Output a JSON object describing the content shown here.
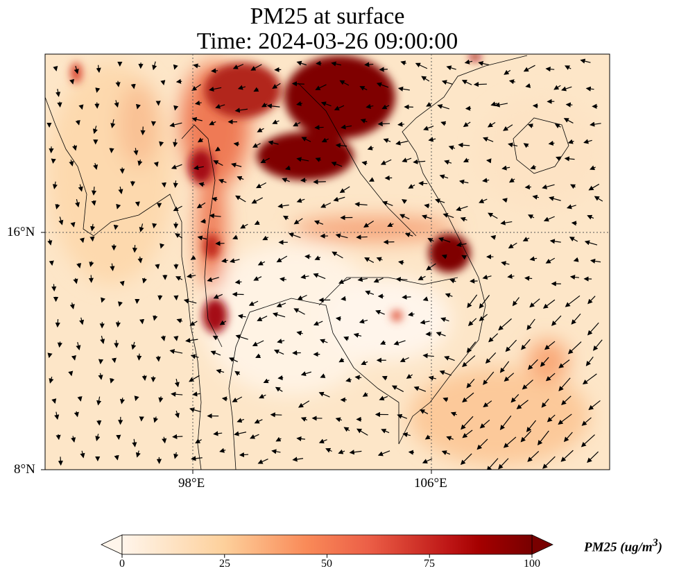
{
  "title": {
    "line1": "PM25 at surface",
    "line2": "Time: 2024-03-26 09:00:00"
  },
  "map": {
    "extent": {
      "lon": [
        93,
        112
      ],
      "lat": [
        8,
        22
      ]
    },
    "xticks": [
      {
        "value": 98,
        "label": "98°E"
      },
      {
        "value": 106,
        "label": "106°E"
      }
    ],
    "yticks": [
      {
        "value": 16,
        "label": "16°N"
      },
      {
        "value": 8,
        "label": "8°N"
      }
    ],
    "variable": "PM25",
    "overlay": "wind vectors"
  },
  "colorbar": {
    "label": "PM25 (ug/m",
    "label_sup": "3",
    "label_close": ")",
    "min": 0,
    "max": 100,
    "extend": "both",
    "ticks": [
      "0",
      "25",
      "50",
      "75",
      "100"
    ],
    "colormap": [
      "#fff5eb",
      "#fdd49e",
      "#fdae6b",
      "#f16913",
      "#d94801",
      "#a50f15",
      "#7f0000"
    ]
  }
}
